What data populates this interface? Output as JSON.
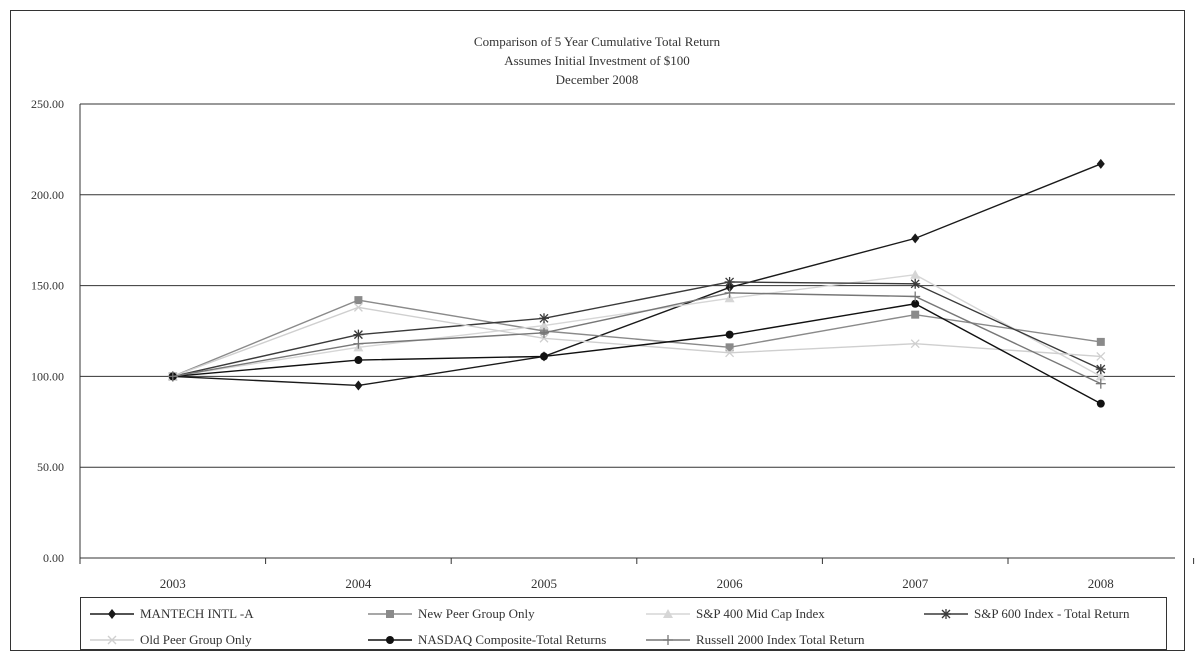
{
  "chart_data": {
    "type": "line",
    "title": "Comparison of 5 Year Cumulative Total Return",
    "subtitle": "Assumes Initial Investment of $100",
    "subtitle2": "December 2008",
    "xlabel": "",
    "ylabel": "",
    "ylim": [
      0,
      250
    ],
    "yticks": [
      "0.00",
      "50.00",
      "100.00",
      "150.00",
      "200.00",
      "250.00"
    ],
    "categories": [
      "2003",
      "2004",
      "2005",
      "2006",
      "2007",
      "2008"
    ],
    "grid": true,
    "legend_position": "bottom",
    "series": [
      {
        "name": "MANTECH INTL -A",
        "marker": "diamond",
        "color": "#1a1a1a",
        "values": [
          100,
          95,
          111,
          149,
          176,
          217
        ]
      },
      {
        "name": "New Peer Group Only",
        "marker": "square",
        "color": "#8a8a8a",
        "values": [
          100,
          142,
          125,
          116,
          134,
          119
        ]
      },
      {
        "name": "S&P 400 Mid Cap Index",
        "marker": "triangle",
        "color": "#d6d6d6",
        "values": [
          100,
          116,
          128,
          143,
          156,
          100
        ]
      },
      {
        "name": "S&P 600 Index - Total Return",
        "marker": "asterisk",
        "color": "#3a3a3a",
        "values": [
          100,
          123,
          132,
          152,
          151,
          104
        ]
      },
      {
        "name": "Old Peer Group Only",
        "marker": "x",
        "color": "#cfcfcf",
        "values": [
          100,
          138,
          121,
          113,
          118,
          111
        ]
      },
      {
        "name": "NASDAQ Composite-Total Returns",
        "marker": "circle",
        "color": "#111111",
        "values": [
          100,
          109,
          111,
          123,
          140,
          85
        ]
      },
      {
        "name": "Russell 2000 Index Total Return",
        "marker": "plus",
        "color": "#777777",
        "values": [
          100,
          118,
          124,
          146,
          144,
          96
        ]
      }
    ]
  }
}
